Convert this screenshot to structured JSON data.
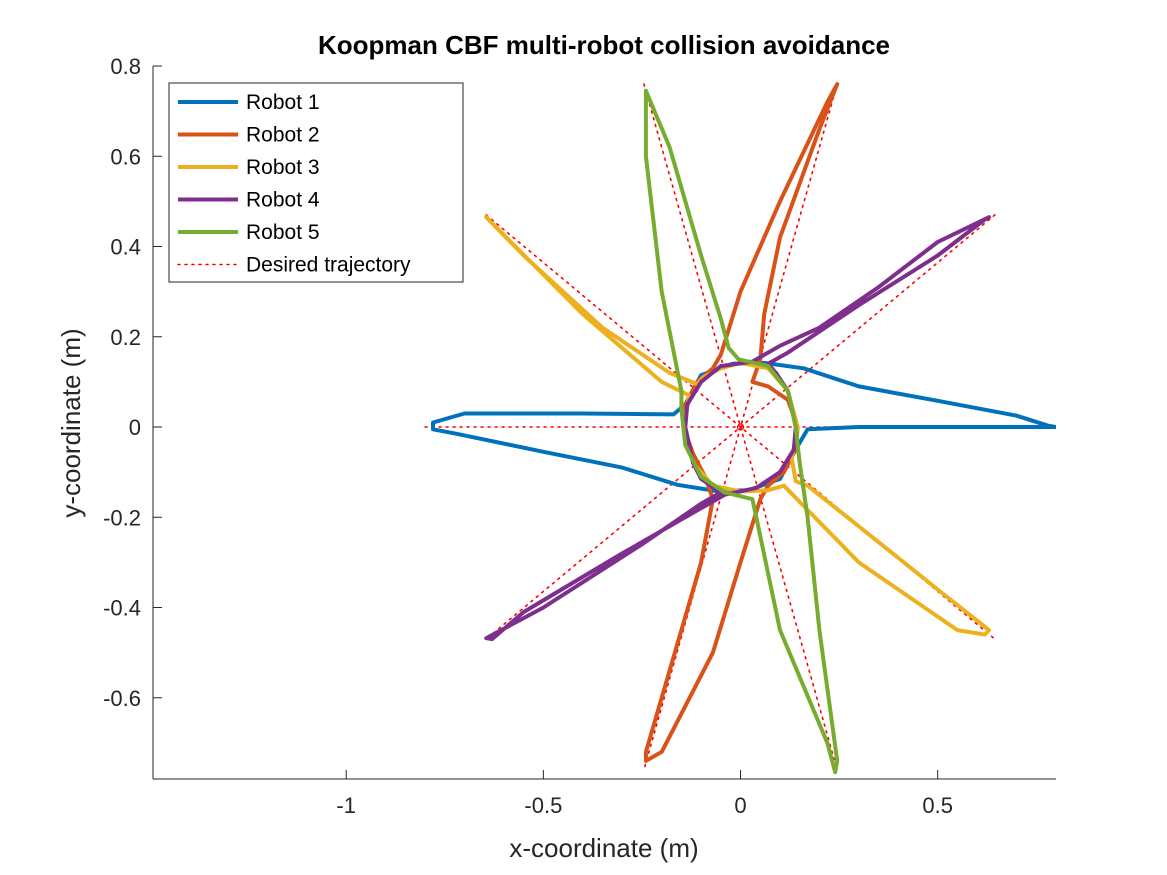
{
  "chart_data": {
    "type": "line",
    "title": "Koopman CBF multi-robot collision avoidance",
    "xlabel": "x-coordinate (m)",
    "ylabel": "y-coordinate (m)",
    "xlim": [
      -1.49,
      0.8
    ],
    "ylim": [
      -0.78,
      0.8
    ],
    "x_ticks": [
      -1,
      -0.5,
      0,
      0.5
    ],
    "x_tick_labels": [
      "-1",
      "-0.5",
      "0",
      "0.5"
    ],
    "y_ticks": [
      -0.6,
      -0.4,
      -0.2,
      0,
      0.2,
      0.4,
      0.6,
      0.8
    ],
    "y_tick_labels": [
      "-0.6",
      "-0.4",
      "-0.2",
      "0",
      "0.2",
      "0.4",
      "0.6",
      "0.8"
    ],
    "legend_position": "top-left",
    "series": [
      {
        "name": "Robot 1",
        "color": "#0072BD",
        "style": "solid",
        "points": [
          [
            0.8,
            0.0
          ],
          [
            0.78,
            0.003
          ],
          [
            0.7,
            0.025
          ],
          [
            0.5,
            0.058
          ],
          [
            0.3,
            0.09
          ],
          [
            0.16,
            0.13
          ],
          [
            0.06,
            0.142
          ],
          [
            -0.02,
            0.14
          ],
          [
            -0.1,
            0.115
          ],
          [
            -0.14,
            0.05
          ],
          [
            -0.17,
            0.028
          ],
          [
            -0.4,
            0.03
          ],
          [
            -0.7,
            0.03
          ],
          [
            -0.78,
            0.01
          ],
          [
            -0.78,
            -0.005
          ],
          [
            -0.72,
            -0.015
          ],
          [
            -0.5,
            -0.055
          ],
          [
            -0.3,
            -0.09
          ],
          [
            -0.16,
            -0.128
          ],
          [
            -0.06,
            -0.142
          ],
          [
            0.02,
            -0.14
          ],
          [
            0.1,
            -0.115
          ],
          [
            0.14,
            -0.05
          ],
          [
            0.17,
            -0.005
          ],
          [
            0.3,
            0.0
          ],
          [
            0.6,
            0.0
          ],
          [
            0.8,
            0.0
          ]
        ]
      },
      {
        "name": "Robot 2",
        "color": "#D95319",
        "style": "solid",
        "points": [
          [
            0.245,
            0.76
          ],
          [
            0.2,
            0.66
          ],
          [
            0.1,
            0.42
          ],
          [
            0.06,
            0.25
          ],
          [
            0.05,
            0.15
          ],
          [
            0.03,
            0.1
          ],
          [
            0.07,
            0.09
          ],
          [
            0.12,
            0.06
          ],
          [
            0.145,
            0.0
          ],
          [
            0.14,
            -0.05
          ],
          [
            0.11,
            -0.1
          ],
          [
            0.07,
            -0.13
          ],
          [
            0.05,
            -0.16
          ],
          [
            0.0,
            -0.3
          ],
          [
            -0.07,
            -0.5
          ],
          [
            -0.2,
            -0.72
          ],
          [
            -0.24,
            -0.74
          ],
          [
            -0.24,
            -0.72
          ],
          [
            -0.2,
            -0.6
          ],
          [
            -0.1,
            -0.3
          ],
          [
            -0.07,
            -0.16
          ],
          [
            -0.09,
            -0.11
          ],
          [
            -0.12,
            -0.06
          ],
          [
            -0.145,
            0.0
          ],
          [
            -0.14,
            0.05
          ],
          [
            -0.11,
            0.1
          ],
          [
            -0.07,
            0.13
          ],
          [
            -0.05,
            0.16
          ],
          [
            0.0,
            0.3
          ],
          [
            0.1,
            0.5
          ],
          [
            0.22,
            0.72
          ],
          [
            0.245,
            0.76
          ]
        ]
      },
      {
        "name": "Robot 3",
        "color": "#EDB120",
        "style": "solid",
        "points": [
          [
            -0.645,
            0.465
          ],
          [
            -0.55,
            0.38
          ],
          [
            -0.35,
            0.22
          ],
          [
            -0.18,
            0.12
          ],
          [
            -0.11,
            0.095
          ],
          [
            -0.095,
            0.11
          ],
          [
            -0.05,
            0.13
          ],
          [
            0.0,
            0.142
          ],
          [
            0.07,
            0.13
          ],
          [
            0.12,
            0.08
          ],
          [
            0.145,
            0.0
          ],
          [
            0.13,
            -0.07
          ],
          [
            0.14,
            -0.12
          ],
          [
            0.17,
            -0.13
          ],
          [
            0.3,
            -0.22
          ],
          [
            0.5,
            -0.36
          ],
          [
            0.63,
            -0.45
          ],
          [
            0.62,
            -0.46
          ],
          [
            0.55,
            -0.45
          ],
          [
            0.3,
            -0.3
          ],
          [
            0.11,
            -0.13
          ],
          [
            0.07,
            -0.14
          ],
          [
            0.0,
            -0.143
          ],
          [
            -0.07,
            -0.13
          ],
          [
            -0.12,
            -0.08
          ],
          [
            -0.145,
            0.0
          ],
          [
            -0.13,
            0.07
          ],
          [
            -0.2,
            0.1
          ],
          [
            -0.4,
            0.25
          ],
          [
            -0.645,
            0.465
          ]
        ]
      },
      {
        "name": "Robot 4",
        "color": "#7E2F8E",
        "style": "solid",
        "points": [
          [
            0.63,
            0.465
          ],
          [
            0.5,
            0.41
          ],
          [
            0.35,
            0.31
          ],
          [
            0.2,
            0.22
          ],
          [
            0.1,
            0.18
          ],
          [
            0.03,
            0.145
          ],
          [
            -0.05,
            0.135
          ],
          [
            -0.1,
            0.1
          ],
          [
            -0.135,
            0.05
          ],
          [
            -0.14,
            0.0
          ],
          [
            -0.12,
            -0.08
          ],
          [
            -0.1,
            -0.115
          ],
          [
            -0.05,
            -0.145
          ],
          [
            -0.1,
            -0.17
          ],
          [
            -0.25,
            -0.26
          ],
          [
            -0.5,
            -0.4
          ],
          [
            -0.645,
            -0.468
          ],
          [
            -0.63,
            -0.47
          ],
          [
            -0.55,
            -0.41
          ],
          [
            -0.3,
            -0.28
          ],
          [
            -0.1,
            -0.18
          ],
          [
            -0.04,
            -0.15
          ],
          [
            0.04,
            -0.135
          ],
          [
            0.1,
            -0.1
          ],
          [
            0.135,
            -0.05
          ],
          [
            0.14,
            0.0
          ],
          [
            0.12,
            0.08
          ],
          [
            0.09,
            0.12
          ],
          [
            0.07,
            0.14
          ],
          [
            0.12,
            0.165
          ],
          [
            0.3,
            0.27
          ],
          [
            0.5,
            0.38
          ],
          [
            0.62,
            0.46
          ],
          [
            0.63,
            0.465
          ]
        ]
      },
      {
        "name": "Robot 5",
        "color": "#77AC30",
        "style": "solid",
        "points": [
          [
            -0.24,
            0.745
          ],
          [
            -0.18,
            0.62
          ],
          [
            -0.1,
            0.38
          ],
          [
            -0.05,
            0.24
          ],
          [
            -0.03,
            0.175
          ],
          [
            -0.005,
            0.15
          ],
          [
            0.07,
            0.135
          ],
          [
            0.12,
            0.08
          ],
          [
            0.14,
            0.0
          ],
          [
            0.15,
            -0.08
          ],
          [
            0.17,
            -0.2
          ],
          [
            0.2,
            -0.45
          ],
          [
            0.245,
            -0.74
          ],
          [
            0.24,
            -0.765
          ],
          [
            0.22,
            -0.7
          ],
          [
            0.1,
            -0.45
          ],
          [
            0.04,
            -0.2
          ],
          [
            0.03,
            -0.16
          ],
          [
            -0.04,
            -0.145
          ],
          [
            -0.1,
            -0.11
          ],
          [
            -0.14,
            -0.04
          ],
          [
            -0.15,
            0.04
          ],
          [
            -0.15,
            0.08
          ],
          [
            -0.2,
            0.3
          ],
          [
            -0.24,
            0.6
          ],
          [
            -0.24,
            0.745
          ]
        ]
      },
      {
        "name": "Desired trajectory",
        "color": "#FF0000",
        "style": "dotted",
        "segments": [
          [
            [
              -0.8,
              0.0
            ],
            [
              0.8,
              0.0
            ]
          ],
          [
            [
              -0.245,
              0.76
            ],
            [
              0.245,
              -0.76
            ]
          ],
          [
            [
              0.245,
              0.76
            ],
            [
              -0.245,
              -0.76
            ]
          ],
          [
            [
              -0.645,
              0.47
            ],
            [
              0.645,
              -0.47
            ]
          ],
          [
            [
              0.645,
              0.47
            ],
            [
              -0.645,
              -0.47
            ]
          ]
        ]
      }
    ]
  }
}
